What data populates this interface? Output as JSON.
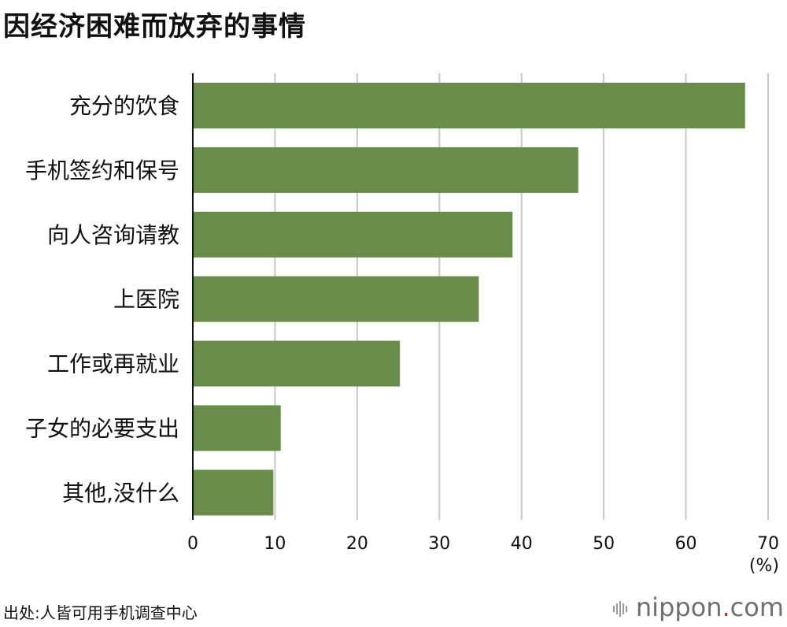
{
  "title": "因经济困难而放弃的事情",
  "source": "出处:人皆可用手机调查中心",
  "brand": {
    "name": "nippon",
    "dot": ".",
    "tld": "com"
  },
  "colors": {
    "bar": "#6a8c4a",
    "grid": "#c8c8c8",
    "axis": "#111111"
  },
  "chart_data": {
    "type": "bar",
    "orientation": "horizontal",
    "categories": [
      "充分的饮食",
      "手机签约和保号",
      "向人咨询请教",
      "上医院",
      "工作或再就业",
      "子女的必要支出",
      "其他,没什么"
    ],
    "values": [
      67.2,
      46.9,
      38.9,
      34.8,
      25.2,
      10.7,
      9.8
    ],
    "xlim": [
      0,
      70
    ],
    "xticks": [
      0,
      10,
      20,
      30,
      40,
      50,
      60,
      70
    ],
    "xunit": "(%)",
    "grid": true
  }
}
